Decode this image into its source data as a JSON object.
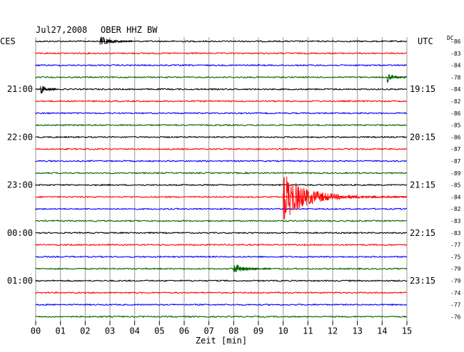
{
  "header": {
    "date": "Jul27,2008",
    "station": "OBER HHZ BW",
    "left_timezone": "CES",
    "right_timezone": "UTC",
    "dc_label": "DC"
  },
  "chart_data": {
    "type": "helicorder",
    "xlabel": "Zeit [min]",
    "xlim": [
      0,
      15
    ],
    "x_ticks": [
      "00",
      "01",
      "02",
      "03",
      "04",
      "05",
      "06",
      "07",
      "08",
      "09",
      "10",
      "11",
      "12",
      "13",
      "14",
      "15"
    ],
    "trace_colors": [
      "#000000",
      "#ff0000",
      "#0000ff",
      "#006400"
    ],
    "trace_count": 24,
    "left_hour_labels": [
      {
        "trace": 4,
        "label": "21:00"
      },
      {
        "trace": 8,
        "label": "22:00"
      },
      {
        "trace": 12,
        "label": "23:00"
      },
      {
        "trace": 16,
        "label": "00:00"
      },
      {
        "trace": 20,
        "label": "01:00"
      }
    ],
    "right_hour_labels": [
      {
        "trace": 4,
        "label": "19:15"
      },
      {
        "trace": 8,
        "label": "20:15"
      },
      {
        "trace": 12,
        "label": "21:15"
      },
      {
        "trace": 16,
        "label": "22:15"
      },
      {
        "trace": 20,
        "label": "23:15"
      }
    ],
    "dc_offsets": [
      -86,
      -83,
      -84,
      -78,
      -84,
      -82,
      -86,
      -85,
      -86,
      -87,
      -87,
      -89,
      -85,
      -84,
      -82,
      -83,
      -83,
      -77,
      -75,
      -79,
      -79,
      -74,
      -77,
      -76
    ],
    "events": [
      {
        "trace": 13,
        "start_min": 10.0,
        "peak_amplitude": "large",
        "decay_until_min": 15.0,
        "label": "earthquake"
      },
      {
        "trace": 19,
        "start_min": 8.0,
        "peak_amplitude": "small",
        "decay_until_min": 9.5
      },
      {
        "trace": 0,
        "start_min": 2.6,
        "peak_amplitude": "small",
        "decay_until_min": 3.9
      },
      {
        "trace": 4,
        "start_min": 0.2,
        "peak_amplitude": "small",
        "decay_until_min": 0.9
      },
      {
        "trace": 3,
        "start_min": 14.2,
        "peak_amplitude": "small",
        "decay_until_min": 15.0
      }
    ],
    "grid": true
  }
}
